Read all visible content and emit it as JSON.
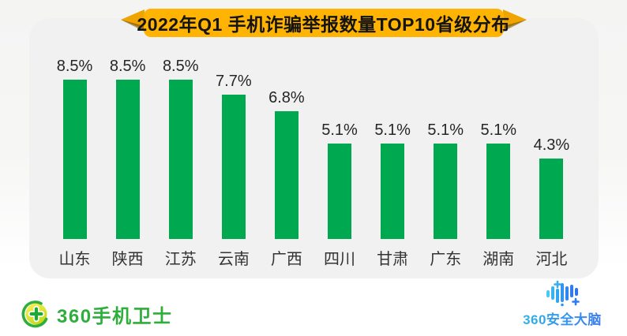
{
  "banner": {
    "title": "2022年Q1 手机诈骗举报数量TOP10省级分布",
    "gold": "#ffb302"
  },
  "chart_data": {
    "type": "bar",
    "title": "2022年Q1 手机诈骗举报数量TOP10省级分布",
    "categories": [
      "山东",
      "陕西",
      "江苏",
      "云南",
      "广西",
      "四川",
      "甘肃",
      "广东",
      "湖南",
      "河北"
    ],
    "values": [
      8.5,
      8.5,
      8.5,
      7.7,
      6.8,
      5.1,
      5.1,
      5.1,
      5.1,
      4.3
    ],
    "value_labels": [
      "8.5%",
      "8.5%",
      "8.5%",
      "7.7%",
      "6.8%",
      "5.1%",
      "5.1%",
      "5.1%",
      "5.1%",
      "4.3%"
    ],
    "unit": "%",
    "bar_color": "#00a84f",
    "ylim": [
      0,
      9.2
    ],
    "grid": false,
    "legend": false,
    "value_label_position": "above-bars",
    "orientation": "vertical"
  },
  "footer": {
    "left_brand": "360手机卫士",
    "right_brand": "360安全大脑"
  },
  "colors": {
    "bar_green": "#00a84f",
    "banner_gold": "#ffb302",
    "brand_green": "#2fae3c",
    "brand_blue": "#3a7bf0",
    "panel_gray": "#f1f1f2",
    "text_dark": "#262626"
  }
}
